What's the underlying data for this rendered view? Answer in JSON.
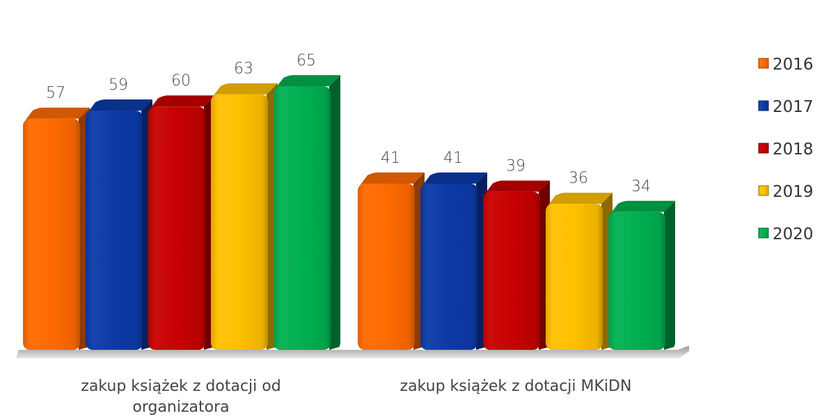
{
  "chart_data": {
    "type": "bar",
    "categories": [
      [
        "zakup książek z dotacji od",
        "organizatora"
      ],
      [
        "zakup książek z dotacji MKiDN"
      ]
    ],
    "series": [
      {
        "name": "2016",
        "color": "#ff6a00",
        "values": [
          57,
          41
        ]
      },
      {
        "name": "2017",
        "color": "#0b3aa8",
        "values": [
          59,
          41
        ]
      },
      {
        "name": "2018",
        "color": "#c80000",
        "values": [
          60,
          39
        ]
      },
      {
        "name": "2019",
        "color": "#ffc000",
        "values": [
          63,
          36
        ]
      },
      {
        "name": "2020",
        "color": "#00b050",
        "values": [
          65,
          34
        ]
      }
    ],
    "ylim": [
      0,
      70
    ],
    "grid": false,
    "legend": "right",
    "data_labels": true
  }
}
